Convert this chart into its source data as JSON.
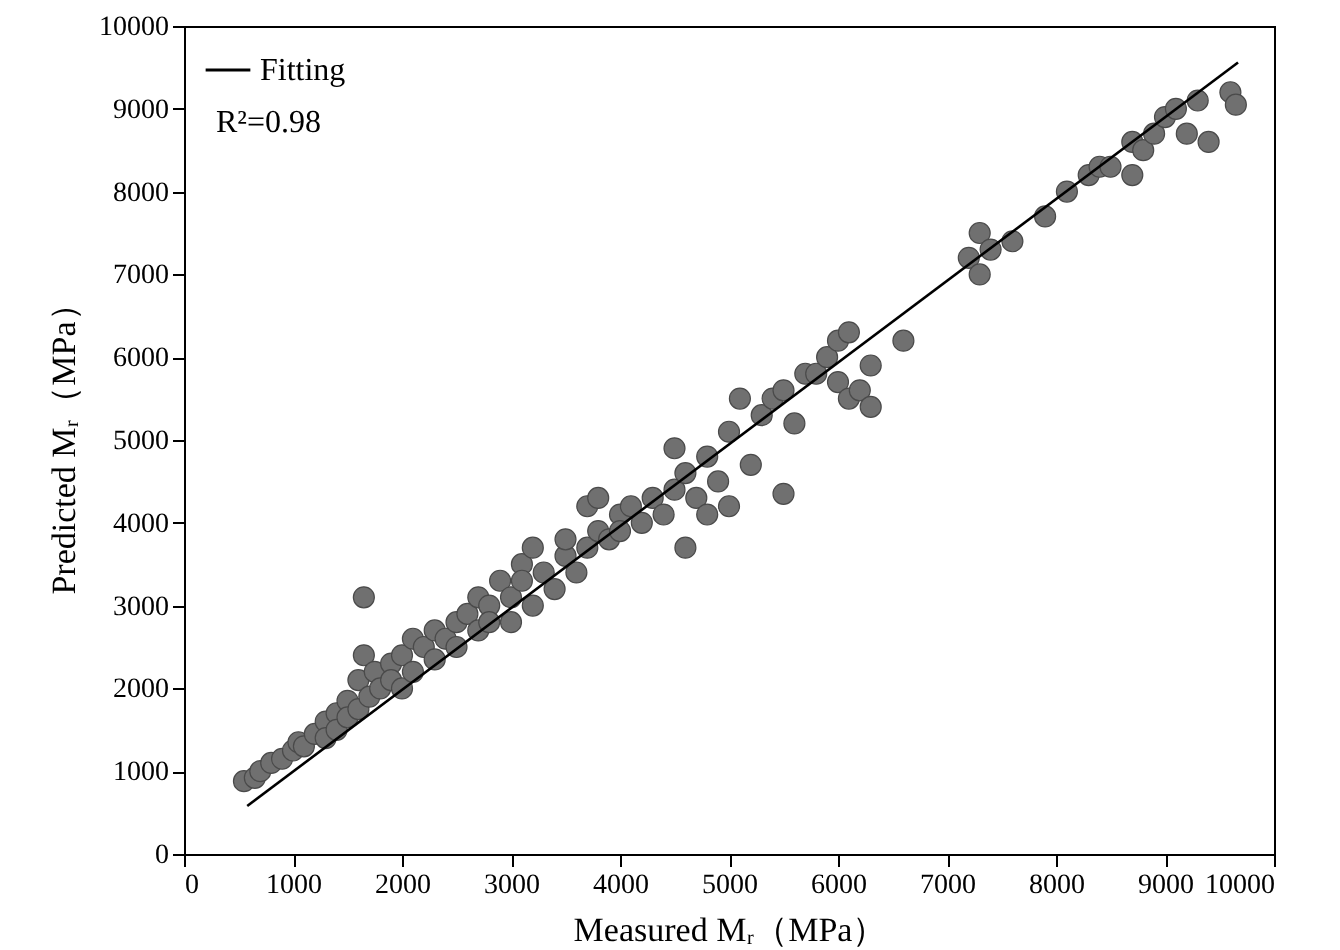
{
  "chart_data": {
    "type": "scatter",
    "xlabel": "Measured Mᵣ（MPa）",
    "ylabel": "Predicted Mᵣ（MPa）",
    "xlim": [
      0,
      10000
    ],
    "ylim": [
      0,
      10000
    ],
    "xticks": [
      0,
      1000,
      2000,
      3000,
      4000,
      5000,
      6000,
      7000,
      8000,
      9000,
      10000
    ],
    "yticks": [
      0,
      1000,
      2000,
      3000,
      4000,
      5000,
      6000,
      7000,
      8000,
      9000,
      10000
    ],
    "legend": "top left",
    "annotations": [
      "R²=0.98"
    ],
    "series": [
      {
        "marker": "circle",
        "color": "#707070",
        "x": [
          550,
          650,
          700,
          800,
          900,
          1000,
          1050,
          1100,
          1200,
          1300,
          1300,
          1400,
          1400,
          1500,
          1500,
          1600,
          1600,
          1650,
          1650,
          1700,
          1750,
          1800,
          1900,
          1900,
          2000,
          2000,
          2100,
          2100,
          2200,
          2300,
          2300,
          2400,
          2500,
          2500,
          2600,
          2700,
          2700,
          2800,
          2800,
          2900,
          3000,
          3000,
          3100,
          3100,
          3200,
          3200,
          3300,
          3400,
          3500,
          3500,
          3600,
          3700,
          3700,
          3800,
          3800,
          3900,
          4000,
          4000,
          4100,
          4200,
          4300,
          4400,
          4500,
          4500,
          4600,
          4600,
          4700,
          4800,
          4800,
          4900,
          5000,
          5000,
          5100,
          5200,
          5300,
          5400,
          5500,
          5500,
          5600,
          5700,
          5800,
          5900,
          6000,
          6000,
          6100,
          6100,
          6200,
          6300,
          6300,
          6600,
          7200,
          7300,
          7300,
          7400,
          7600,
          7900,
          8100,
          8300,
          8400,
          8500,
          8700,
          8700,
          8800,
          8900,
          9000,
          9100,
          9200,
          9300,
          9400,
          9600,
          9650
        ],
        "values": [
          880,
          920,
          1000,
          1100,
          1150,
          1250,
          1350,
          1300,
          1450,
          1600,
          1400,
          1700,
          1500,
          1850,
          1650,
          2100,
          1750,
          3100,
          2400,
          1900,
          2200,
          2000,
          2300,
          2100,
          2400,
          2000,
          2600,
          2200,
          2500,
          2700,
          2350,
          2600,
          2800,
          2500,
          2900,
          2700,
          3100,
          3000,
          2800,
          3300,
          3100,
          2800,
          3500,
          3300,
          3700,
          3000,
          3400,
          3200,
          3600,
          3800,
          3400,
          4200,
          3700,
          4300,
          3900,
          3800,
          4100,
          3900,
          4200,
          4000,
          4300,
          4100,
          4900,
          4400,
          4600,
          3700,
          4300,
          4800,
          4100,
          4500,
          5100,
          4200,
          5500,
          4700,
          5300,
          5500,
          5600,
          4350,
          5200,
          5800,
          5800,
          6000,
          6200,
          5700,
          6300,
          5500,
          5600,
          5900,
          5400,
          6200,
          7200,
          7500,
          7000,
          7300,
          7400,
          7700,
          8000,
          8200,
          8300,
          8300,
          8600,
          8200,
          8500,
          8700,
          8900,
          9000,
          8700,
          9100,
          8600,
          9200,
          9050
        ]
      },
      {
        "type": "line",
        "marker": "none",
        "name": "Fitting",
        "color": "#000000",
        "x": [
          580,
          9670
        ],
        "values": [
          580,
          9560
        ]
      }
    ]
  }
}
